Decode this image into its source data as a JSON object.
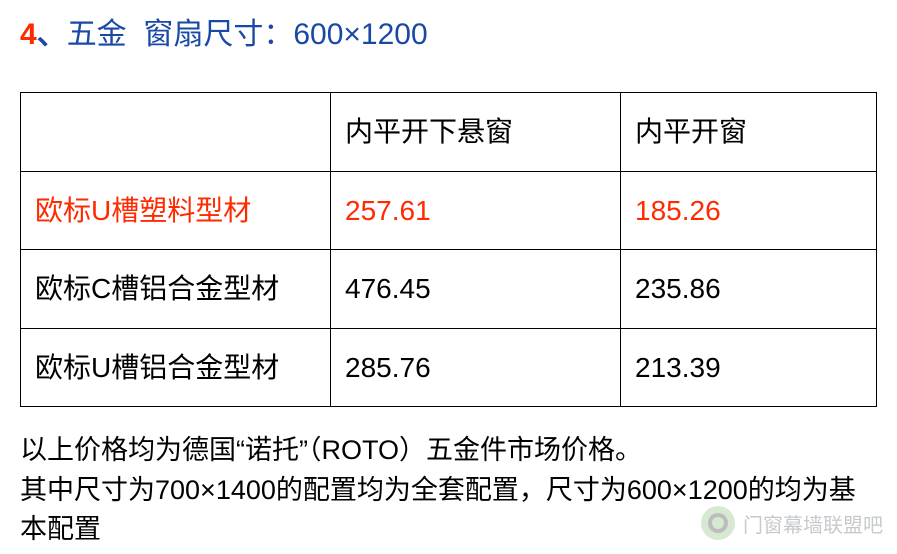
{
  "heading": {
    "number": "4",
    "punct": "、",
    "hardware": "五金",
    "spec": "窗扇尺寸：600×1200"
  },
  "table": {
    "columns": [
      "",
      "内平开下悬窗",
      "内平开窗"
    ],
    "rows": [
      {
        "cells": [
          "欧标U槽塑料型材",
          "257.61",
          "185.26"
        ],
        "highlight": true
      },
      {
        "cells": [
          "欧标C槽铝合金型材",
          "476.45",
          "235.86"
        ],
        "highlight": false
      },
      {
        "cells": [
          "欧标U槽铝合金型材",
          "285.76",
          "213.39"
        ],
        "highlight": false
      }
    ]
  },
  "notes": {
    "line1": "以上价格均为德国“诺托”（ROTO）五金件市场价格。",
    "line2": "其中尺寸为700×1400的配置均为全套配置，尺寸为600×1200的均为基本配置"
  },
  "watermark": "门窗幕墙联盟吧"
}
